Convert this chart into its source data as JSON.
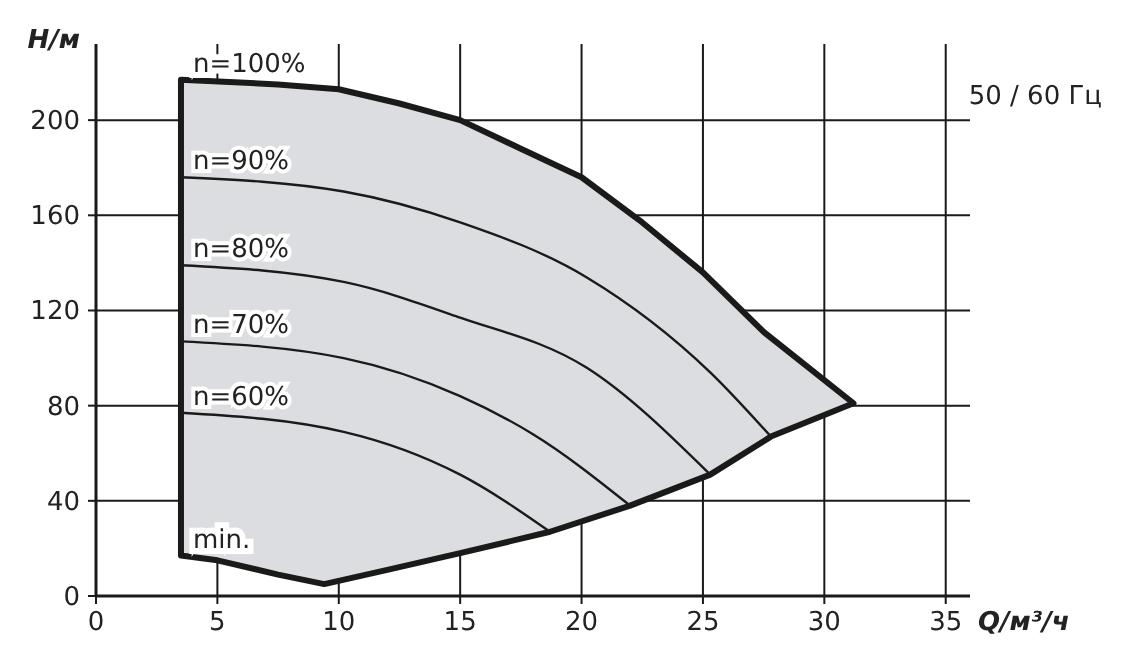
{
  "chart_data": {
    "type": "line",
    "subtitle": "50 / 60 Гц",
    "xlabel": "Q/м³/ч",
    "ylabel": "H/м",
    "xlim": [
      0,
      36
    ],
    "ylim": [
      0,
      232
    ],
    "xticks": [
      0,
      5,
      10,
      15,
      20,
      25,
      30,
      35
    ],
    "yticks": [
      0,
      40,
      80,
      120,
      160,
      200
    ],
    "grid": true,
    "marker": "none",
    "line_style": "solid",
    "series": [
      {
        "type": "area",
        "color": "#dcdde0",
        "x": [
          3.5,
          3.5,
          7.5,
          10,
          12.5,
          15,
          17.5,
          20,
          22.5,
          25,
          27.5,
          31.2,
          27.8,
          25.3,
          22,
          18.7,
          15,
          12,
          9.4,
          7.5,
          5,
          3.5
        ],
        "values": [
          17,
          217,
          215,
          213,
          207,
          200,
          188,
          176,
          157,
          136,
          111,
          81,
          67,
          51,
          38,
          27,
          18,
          11,
          5,
          9,
          15,
          17
        ]
      },
      {
        "name": "n=90%",
        "color": "#1a1a1a",
        "x": [
          3.5,
          10.2,
          15,
          20.2,
          25.3,
          27.8
        ],
        "values": [
          176,
          170,
          157,
          134,
          94,
          67
        ]
      },
      {
        "name": "n=80%",
        "color": "#1a1a1a",
        "x": [
          3.5,
          10.2,
          15,
          20.2,
          25.3
        ],
        "values": [
          139,
          132,
          117,
          96,
          51
        ]
      },
      {
        "name": "n=70%",
        "color": "#1a1a1a",
        "x": [
          3.5,
          10.2,
          15,
          18,
          22
        ],
        "values": [
          107,
          100,
          84,
          68,
          38
        ]
      },
      {
        "name": "n=60%",
        "color": "#1a1a1a",
        "x": [
          3.5,
          10.2,
          15,
          18.7
        ],
        "values": [
          77,
          69,
          51,
          27
        ]
      }
    ],
    "annotations": [
      {
        "text": "n=100%",
        "x": 3.5,
        "y": 217
      },
      {
        "text": "min.",
        "x": 3.5,
        "y": 17
      }
    ]
  }
}
